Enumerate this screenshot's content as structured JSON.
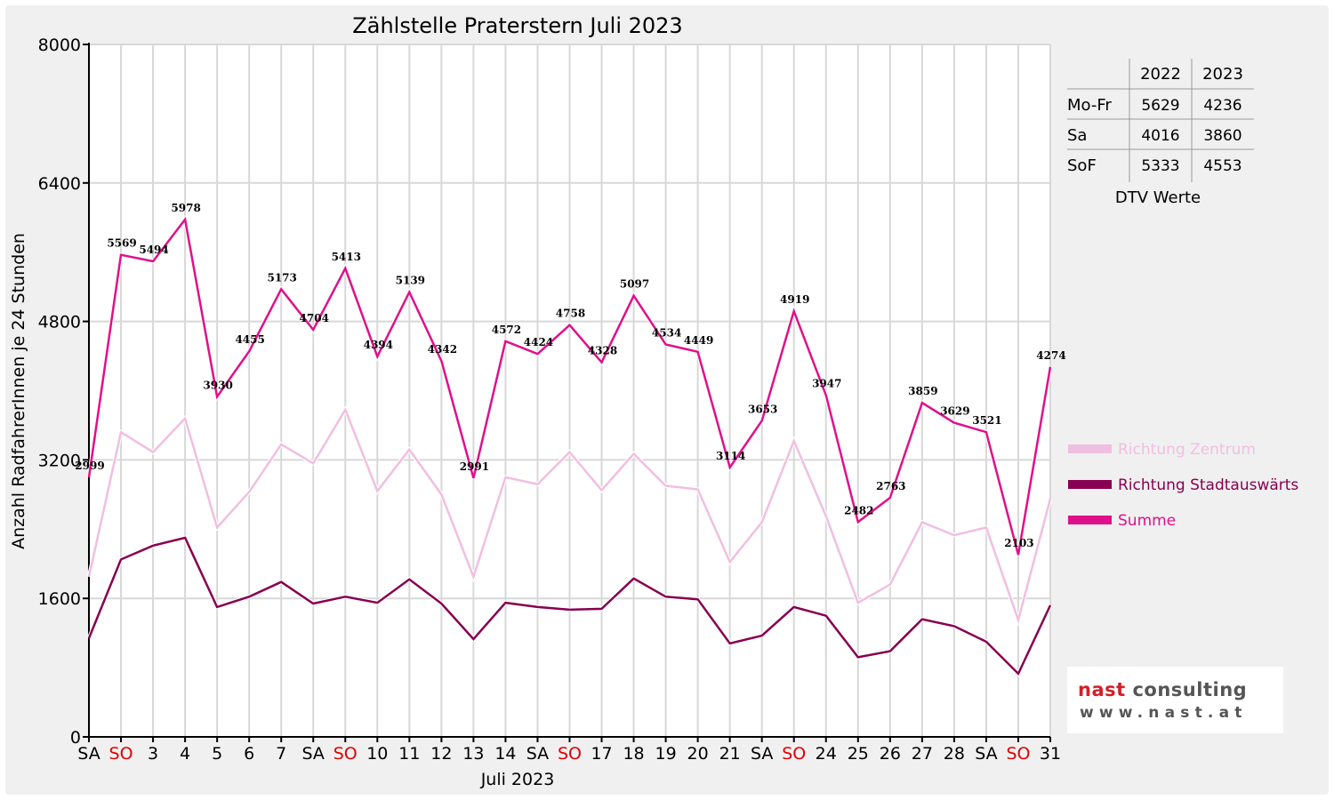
{
  "chart_data": {
    "type": "line",
    "title": "Zählstelle Praterstern Juli 2023",
    "ylabel": "Anzahl RadfahrerInnen je 24 Stunden",
    "xlabel": "Juli 2023",
    "ylim": [
      0,
      8000
    ],
    "yticks": [
      "0",
      "1600",
      "3200",
      "4800",
      "6400",
      "8000"
    ],
    "grid": true,
    "legend_position": "right",
    "categories": [
      "SA",
      "SO",
      "3",
      "4",
      "5",
      "6",
      "7",
      "SA",
      "SO",
      "10",
      "11",
      "12",
      "13",
      "14",
      "SA",
      "SO",
      "17",
      "18",
      "19",
      "20",
      "21",
      "SA",
      "SO",
      "24",
      "25",
      "26",
      "27",
      "28",
      "SA",
      "SO",
      "31"
    ],
    "highlighted_categories": [
      1,
      8,
      15,
      22,
      29
    ],
    "highlight_color": "#e00000",
    "series": [
      {
        "name": "Richtung Zentrum",
        "color": "#f0bfe0",
        "values": [
          1850,
          3520,
          3290,
          3680,
          2420,
          2830,
          3380,
          3160,
          3780,
          2840,
          3320,
          2800,
          1850,
          3000,
          2920,
          3290,
          2850,
          3270,
          2900,
          2860,
          2020,
          2480,
          3420,
          2550,
          1550,
          1760,
          2480,
          2330,
          2420,
          1350,
          2750
        ]
      },
      {
        "name": "Richtung Stadtauswärts",
        "color": "#880050",
        "values": [
          1140,
          2050,
          2210,
          2300,
          1500,
          1620,
          1790,
          1540,
          1620,
          1550,
          1820,
          1540,
          1130,
          1550,
          1500,
          1470,
          1480,
          1830,
          1620,
          1590,
          1080,
          1170,
          1500,
          1400,
          920,
          990,
          1360,
          1280,
          1100,
          730,
          1520
        ]
      },
      {
        "name": "Summe",
        "color": "#e0108a",
        "values": [
          2999,
          5569,
          5494,
          5978,
          3930,
          4455,
          5173,
          4704,
          5413,
          4394,
          5139,
          4342,
          2991,
          4572,
          4424,
          4758,
          4328,
          5097,
          4534,
          4449,
          3114,
          3653,
          4919,
          3947,
          2482,
          2763,
          3859,
          3629,
          3521,
          2103,
          4274
        ],
        "labels": [
          "2999",
          "5569",
          "5494",
          "5978",
          "3930",
          "4455",
          "5173",
          "4704",
          "5413",
          "4394",
          "5139",
          "4342",
          "2991",
          "4572",
          "4424",
          "4758",
          "4328",
          "5097",
          "4534",
          "4449",
          "3114",
          "3653",
          "4919",
          "3947",
          "2482",
          "2763",
          "3859",
          "3629",
          "3521",
          "2103",
          "4274"
        ]
      }
    ],
    "dtv_table": {
      "caption": "DTV Werte",
      "columns": [
        "2022",
        "2023"
      ],
      "rows": [
        {
          "label": "Mo-Fr",
          "values": [
            "5629",
            "4236"
          ]
        },
        {
          "label": "Sa",
          "values": [
            "4016",
            "3860"
          ]
        },
        {
          "label": "SoF",
          "values": [
            "5333",
            "4553"
          ]
        }
      ]
    }
  },
  "logo": {
    "line1_part1": "nast",
    "line1_part2": " consulting",
    "line2": "www.nast.at"
  }
}
